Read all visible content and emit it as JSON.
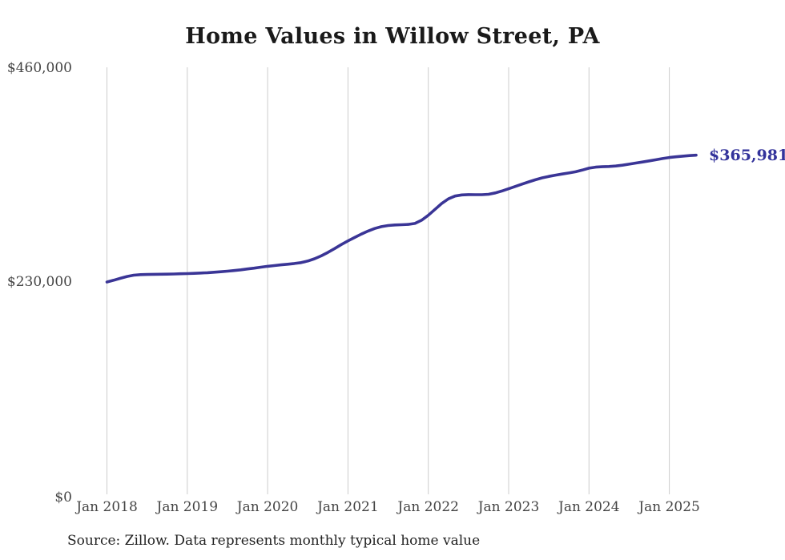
{
  "title": "Home Values in Willow Street, PA",
  "source_note": "Source: Zillow. Data represents monthly typical home value",
  "end_label": "$365,981",
  "colors": {
    "line": "#3a3596",
    "end_label": "#33339b",
    "grid": "#cccccc",
    "title": "#1a1a1a",
    "tick_label": "#444444"
  },
  "y_axis": {
    "min": 0,
    "max": 460000,
    "ticks": [
      {
        "label": "$460,000",
        "value": 460000
      },
      {
        "label": "$230,000",
        "value": 230000
      },
      {
        "label": "$0",
        "value": 0
      }
    ]
  },
  "x_axis": {
    "ticks": [
      {
        "label": "Jan 2018",
        "month_index": 0
      },
      {
        "label": "Jan 2019",
        "month_index": 12
      },
      {
        "label": "Jan 2020",
        "month_index": 24
      },
      {
        "label": "Jan 2021",
        "month_index": 36
      },
      {
        "label": "Jan 2022",
        "month_index": 48
      },
      {
        "label": "Jan 2023",
        "month_index": 60
      },
      {
        "label": "Jan 2024",
        "month_index": 72
      },
      {
        "label": "Jan 2025",
        "month_index": 84
      }
    ]
  },
  "chart_data": {
    "type": "line",
    "title": "Home Values in Willow Street, PA",
    "x_unit": "month",
    "x_start": "2018-01",
    "x_end": "2025-05",
    "ylim": [
      0,
      460000
    ],
    "grid": "vertical-only",
    "legend": "none",
    "final_value": 365981,
    "final_value_label": "$365,981",
    "values": [
      229100,
      231000,
      233100,
      235100,
      236500,
      237100,
      237300,
      237400,
      237500,
      237600,
      237800,
      238000,
      238200,
      238500,
      238800,
      239200,
      239700,
      240200,
      240800,
      241500,
      242300,
      243200,
      244100,
      245100,
      246100,
      246900,
      247600,
      248300,
      249100,
      250100,
      251800,
      254200,
      257300,
      261000,
      265200,
      269500,
      273500,
      277200,
      280800,
      284100,
      286900,
      288900,
      290100,
      290700,
      291000,
      291300,
      292300,
      295800,
      301200,
      307600,
      313900,
      318900,
      321900,
      323100,
      323500,
      323400,
      323400,
      323800,
      325300,
      327400,
      329800,
      332300,
      334800,
      337200,
      339500,
      341500,
      343100,
      344500,
      345700,
      346800,
      348100,
      349900,
      352000,
      353100,
      353600,
      353800,
      354300,
      355200,
      356300,
      357500,
      358700,
      359900,
      361100,
      362400,
      363500,
      364300,
      365000,
      365600,
      365981
    ]
  }
}
